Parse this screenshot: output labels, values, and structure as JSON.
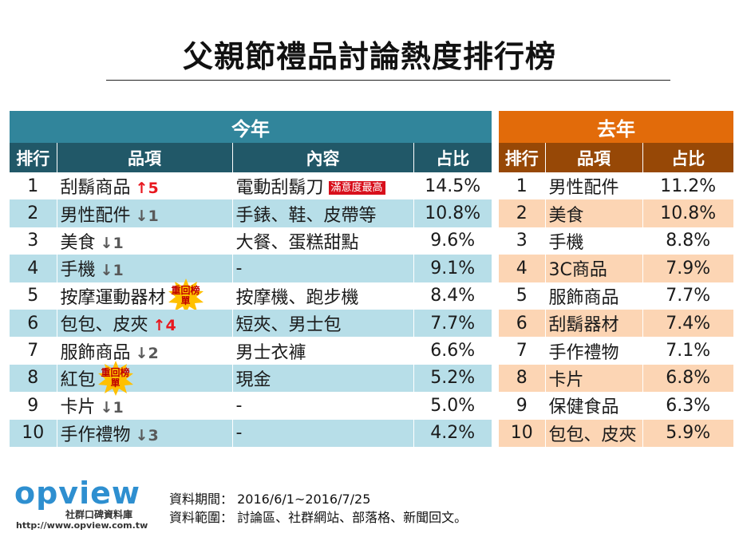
{
  "title": "父親節禮品討論熱度排行榜",
  "this_year": {
    "section_label": "今年",
    "headers": [
      "排行",
      "品項",
      "內容",
      "占比"
    ],
    "rows": [
      {
        "rank": "1",
        "item": "刮鬍商品",
        "change_dir": "up",
        "change": "5",
        "content": "電動刮鬍刀",
        "tag": "滿意度最高",
        "share": "14.5%"
      },
      {
        "rank": "2",
        "item": "男性配件",
        "change_dir": "down",
        "change": "1",
        "content": "手錶、鞋、皮帶等",
        "share": "10.8%"
      },
      {
        "rank": "3",
        "item": "美食",
        "change_dir": "down",
        "change": "1",
        "content": "大餐、蛋糕甜點",
        "share": "9.6%"
      },
      {
        "rank": "4",
        "item": "手機",
        "change_dir": "down",
        "change": "1",
        "content": "-",
        "share": "9.1%"
      },
      {
        "rank": "5",
        "item": "按摩運動器材",
        "badge": "重回榜單",
        "content": "按摩機、跑步機",
        "share": "8.4%"
      },
      {
        "rank": "6",
        "item": "包包、皮夾",
        "change_dir": "up",
        "change": "4",
        "content": "短夾、男士包",
        "share": "7.7%"
      },
      {
        "rank": "7",
        "item": "服飾商品",
        "change_dir": "down",
        "change": "2",
        "content": "男士衣褲",
        "share": "6.6%"
      },
      {
        "rank": "8",
        "item": "紅包",
        "badge": "重回榜單",
        "content": "現金",
        "share": "5.2%"
      },
      {
        "rank": "9",
        "item": "卡片",
        "change_dir": "down",
        "change": "1",
        "content": "-",
        "share": "5.0%"
      },
      {
        "rank": "10",
        "item": "手作禮物",
        "change_dir": "down",
        "change": "3",
        "content": "-",
        "share": "4.2%"
      }
    ]
  },
  "last_year": {
    "section_label": "去年",
    "headers": [
      "排行",
      "品項",
      "占比"
    ],
    "rows": [
      {
        "rank": "1",
        "item": "男性配件",
        "share": "11.2%"
      },
      {
        "rank": "2",
        "item": "美食",
        "share": "10.8%"
      },
      {
        "rank": "3",
        "item": "手機",
        "share": "8.8%"
      },
      {
        "rank": "4",
        "item": "3C商品",
        "share": "7.9%"
      },
      {
        "rank": "5",
        "item": "服飾商品",
        "share": "7.7%"
      },
      {
        "rank": "6",
        "item": "刮鬍器材",
        "share": "7.4%"
      },
      {
        "rank": "7",
        "item": "手作禮物",
        "share": "7.1%"
      },
      {
        "rank": "8",
        "item": "卡片",
        "share": "6.8%"
      },
      {
        "rank": "9",
        "item": "保健食品",
        "share": "6.3%"
      },
      {
        "rank": "10",
        "item": "包包、皮夾",
        "share": "5.9%"
      }
    ]
  },
  "chart_data": {
    "type": "table",
    "title": "父親節禮品討論熱度排行榜",
    "tables": [
      {
        "name": "今年",
        "columns": [
          "排行",
          "品項",
          "內容",
          "占比"
        ],
        "categories": [
          "刮鬍商品",
          "男性配件",
          "美食",
          "手機",
          "按摩運動器材",
          "包包、皮夾",
          "服飾商品",
          "紅包",
          "卡片",
          "手作禮物"
        ],
        "values": [
          14.5,
          10.8,
          9.6,
          9.1,
          8.4,
          7.7,
          6.6,
          5.2,
          5.0,
          4.2
        ],
        "rank_change": [
          "+5",
          "-1",
          "-1",
          "-1",
          "重回榜單",
          "+4",
          "-2",
          "重回榜單",
          "-1",
          "-3"
        ]
      },
      {
        "name": "去年",
        "columns": [
          "排行",
          "品項",
          "占比"
        ],
        "categories": [
          "男性配件",
          "美食",
          "手機",
          "3C商品",
          "服飾商品",
          "刮鬍器材",
          "手作禮物",
          "卡片",
          "保健食品",
          "包包、皮夾"
        ],
        "values": [
          11.2,
          10.8,
          8.8,
          7.9,
          7.7,
          7.4,
          7.1,
          6.8,
          6.3,
          5.9
        ]
      }
    ]
  },
  "footer": {
    "logo_text": "opview",
    "logo_sub": "社群口碑資料庫",
    "logo_url": "http://www.opview.com.tw",
    "period": "資料期間： 2016/6/1~2016/7/25",
    "scope": "資料範圍： 討論區、社群網站、部落格、新聞回文。"
  },
  "colors": {
    "this_year_section": "#31859b",
    "this_year_header": "#215868",
    "this_year_stripe": "#b7dee8",
    "last_year_section": "#e26b0a",
    "last_year_header": "#974806",
    "last_year_stripe": "#fcd5b4",
    "up": "#e8181f",
    "down": "#595959",
    "tag": "#d8101c",
    "badge_star": "#ffc000"
  }
}
